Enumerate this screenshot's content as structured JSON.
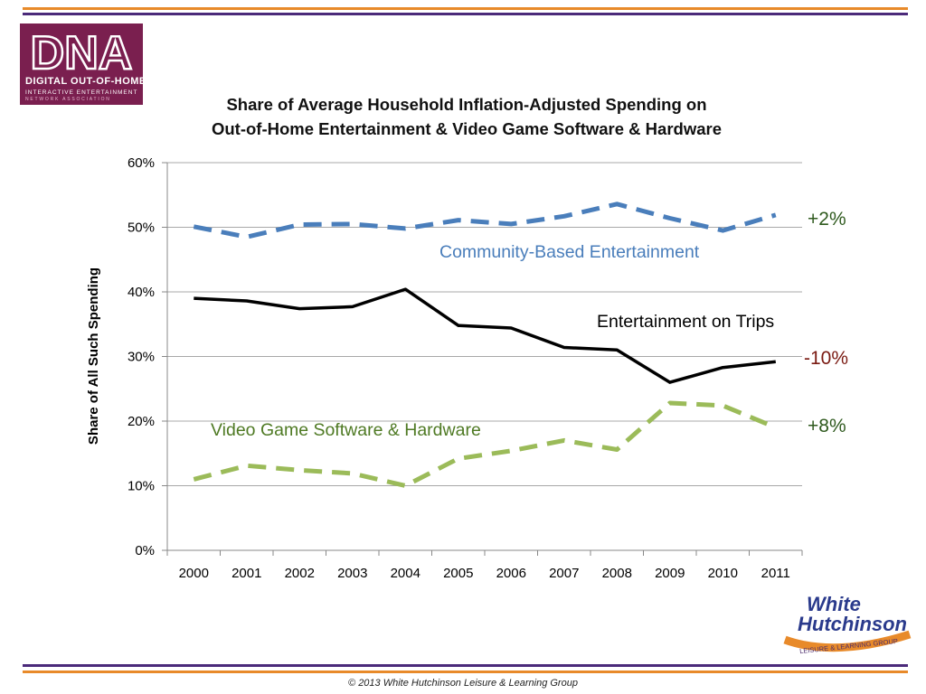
{
  "logo_top": {
    "big": "DNA",
    "line1": "DIGITAL OUT-OF-HOME",
    "line2": "INTERACTIVE ENTERTAINMENT",
    "line3": "NETWORK ASSOCIATION"
  },
  "chart_data": {
    "type": "line",
    "title": "Share of Average Household Inflation-Adjusted Spending on",
    "subtitle": "Out-of-Home Entertainment & Video Game Software & Hardware",
    "xlabel": "",
    "ylabel": "Share of All Such Spending",
    "ylim": [
      0,
      60
    ],
    "y_ticks": [
      "0%",
      "10%",
      "20%",
      "30%",
      "40%",
      "50%",
      "60%"
    ],
    "categories": [
      "2000",
      "2001",
      "2002",
      "2003",
      "2004",
      "2005",
      "2006",
      "2007",
      "2008",
      "2009",
      "2010",
      "2011"
    ],
    "grid": true,
    "legend": "none",
    "series": [
      {
        "name": "Community-Based Entertainment",
        "values": [
          50.1,
          48.5,
          50.4,
          50.5,
          49.8,
          51.1,
          50.5,
          51.7,
          53.6,
          51.4,
          49.5,
          51.9
        ],
        "color": "#4a7ebb",
        "style": "dashed",
        "change": "+2%",
        "change_color": "#2f5a1e"
      },
      {
        "name": "Entertainment on Trips",
        "values": [
          39.0,
          38.6,
          37.4,
          37.7,
          40.4,
          34.8,
          34.4,
          31.4,
          31.0,
          26.0,
          28.3,
          29.2
        ],
        "color": "#000000",
        "style": "solid",
        "change": "-10%",
        "change_color": "#7a1a12"
      },
      {
        "name": "Video Game Software & Hardware",
        "values": [
          11.0,
          13.1,
          12.4,
          11.9,
          10.0,
          14.2,
          15.4,
          17.0,
          15.6,
          22.8,
          22.4,
          19.0
        ],
        "color": "#9bbb59",
        "style": "dashed",
        "change": "+8%",
        "change_color": "#2f5a1e"
      }
    ]
  },
  "logo_bottom": {
    "line1": "White",
    "line2": "Hutchinson",
    "tagline": "LEISURE & LEARNING GROUP"
  },
  "footer": "© 2013 White Hutchinson Leisure & Learning Group",
  "colors": {
    "rule_orange": "#e88a2a",
    "rule_purple": "#4b2a7a",
    "logo_maroon": "#7a1f4f",
    "gridline": "#a8a8a8"
  }
}
